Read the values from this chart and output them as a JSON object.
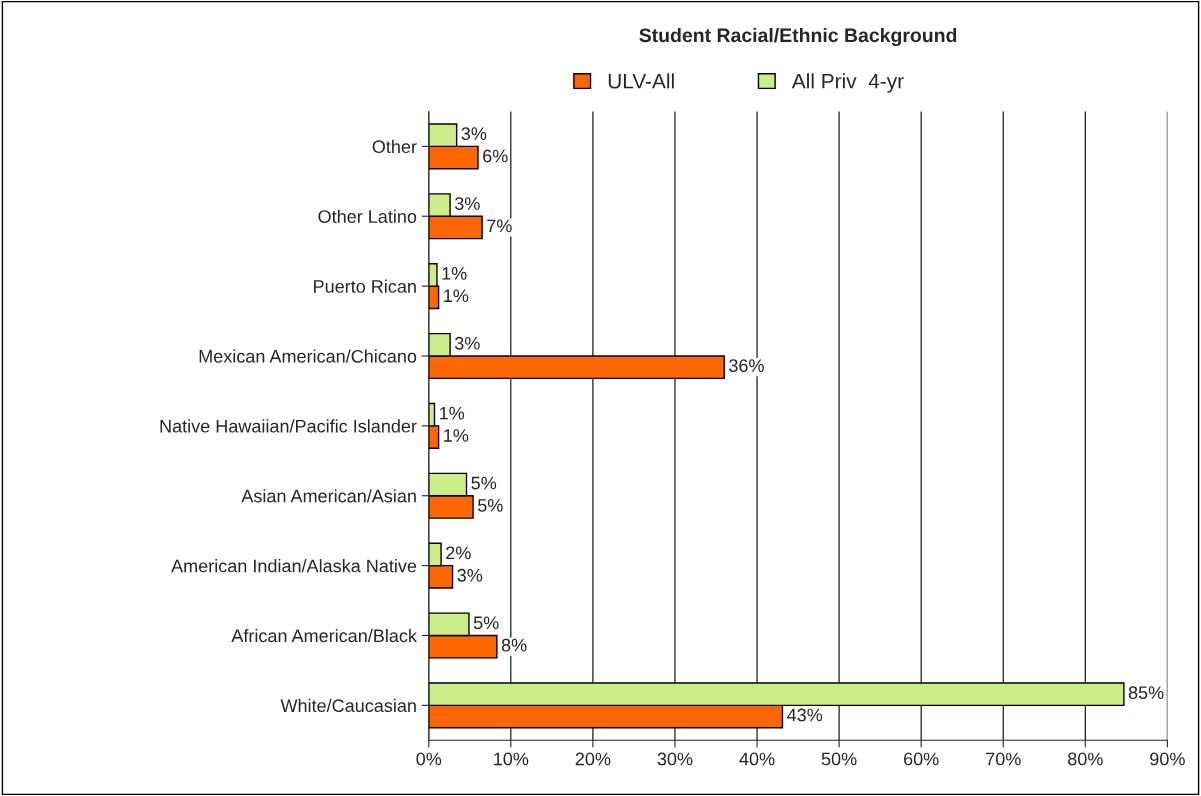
{
  "chart_data": {
    "type": "bar",
    "orientation": "horizontal",
    "title": "Student Racial/Ethnic Background",
    "categories": [
      "Other",
      "Other Latino",
      "Puerto Rican",
      "Mexican American/Chicano",
      "Native Hawaiian/Pacific Islander",
      "Asian American/Asian",
      "American Indian/Alaska Native",
      "African American/Black",
      "White/Caucasian"
    ],
    "series": [
      {
        "name": "ULV-All",
        "color": "#ff6600",
        "values": [
          6.0,
          6.5,
          1.2,
          36.0,
          1.2,
          5.4,
          2.9,
          8.3,
          43.1
        ],
        "value_labels": [
          "6%",
          "7%",
          "1%",
          "36%",
          "1%",
          "5%",
          "3%",
          "8%",
          "43%"
        ]
      },
      {
        "name": "All Priv  4-yr",
        "color": "#ccee88",
        "values": [
          3.4,
          2.6,
          1.0,
          2.6,
          0.7,
          4.6,
          1.5,
          4.9,
          84.7
        ],
        "value_labels": [
          "3%",
          "3%",
          "1%",
          "3%",
          "1%",
          "5%",
          "2%",
          "5%",
          "85%"
        ]
      }
    ],
    "xlim": [
      0,
      90
    ],
    "xticks": [
      {
        "value": 0,
        "label": "0%"
      },
      {
        "value": 10,
        "label": "10%"
      },
      {
        "value": 20,
        "label": "20%"
      },
      {
        "value": 30,
        "label": "30%"
      },
      {
        "value": 40,
        "label": "40%"
      },
      {
        "value": 50,
        "label": "50%"
      },
      {
        "value": 60,
        "label": "60%"
      },
      {
        "value": 70,
        "label": "70%"
      },
      {
        "value": 80,
        "label": "80%"
      },
      {
        "value": 90,
        "label": "90%"
      }
    ],
    "grid": "x",
    "legend": "top"
  }
}
